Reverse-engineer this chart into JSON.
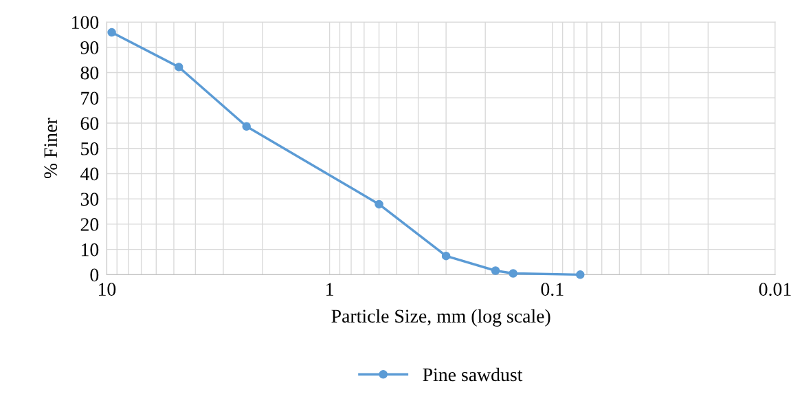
{
  "chart_data": {
    "type": "line",
    "xlabel": "Particle Size, mm (log scale)",
    "ylabel": "% Finer",
    "log": "x",
    "xlim": [
      10,
      0.01
    ],
    "xticks": [
      10,
      1,
      0.1,
      0.01
    ],
    "ylim": [
      0,
      100
    ],
    "yticks": [
      0,
      10,
      20,
      30,
      40,
      50,
      60,
      70,
      80,
      90,
      100
    ],
    "grid": true,
    "legend": "bottom",
    "marker": "circle",
    "line_style": "solid",
    "series": [
      {
        "name": "Pine sawdust",
        "color": "#5b9bd5",
        "x": [
          9.5,
          4.75,
          2.36,
          0.6,
          0.3,
          0.18,
          0.15,
          0.075
        ],
        "values": [
          95.9,
          82.2,
          58.7,
          27.9,
          7.4,
          1.6,
          0.5,
          0
        ]
      }
    ]
  }
}
